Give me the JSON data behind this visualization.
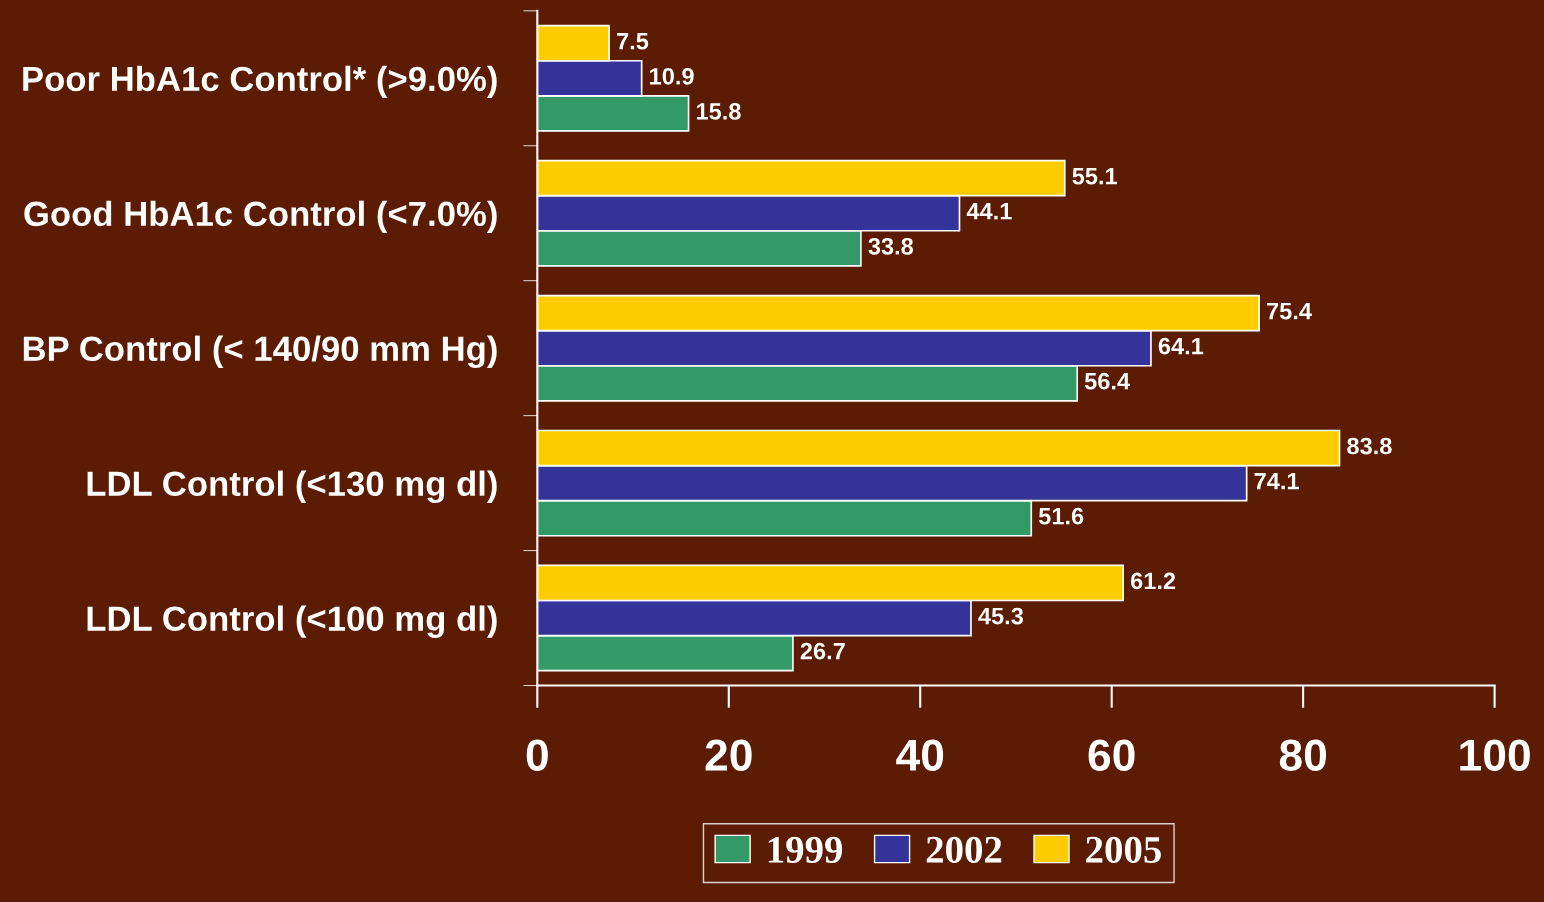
{
  "chart_data": {
    "type": "bar",
    "orientation": "horizontal",
    "categories": [
      "Poor HbA1c Control* (>9.0%)",
      "Good HbA1c Control (<7.0%)",
      "BP Control (< 140/90 mm Hg)",
      "LDL Control (<130 mg dl)",
      "LDL Control (<100 mg dl)"
    ],
    "series": [
      {
        "name": "1999",
        "color": "#339966",
        "values": [
          15.8,
          33.8,
          56.4,
          51.6,
          26.7
        ]
      },
      {
        "name": "2002",
        "color": "#333399",
        "values": [
          10.9,
          44.1,
          64.1,
          74.1,
          45.3
        ]
      },
      {
        "name": "2005",
        "color": "#ffcc00",
        "values": [
          7.5,
          55.1,
          75.4,
          83.8,
          61.2
        ]
      }
    ],
    "xlim": [
      0,
      100
    ],
    "xticks": [
      0,
      20,
      40,
      60,
      80,
      100
    ],
    "data_labels": true,
    "legend": "bottom",
    "grid": false
  }
}
